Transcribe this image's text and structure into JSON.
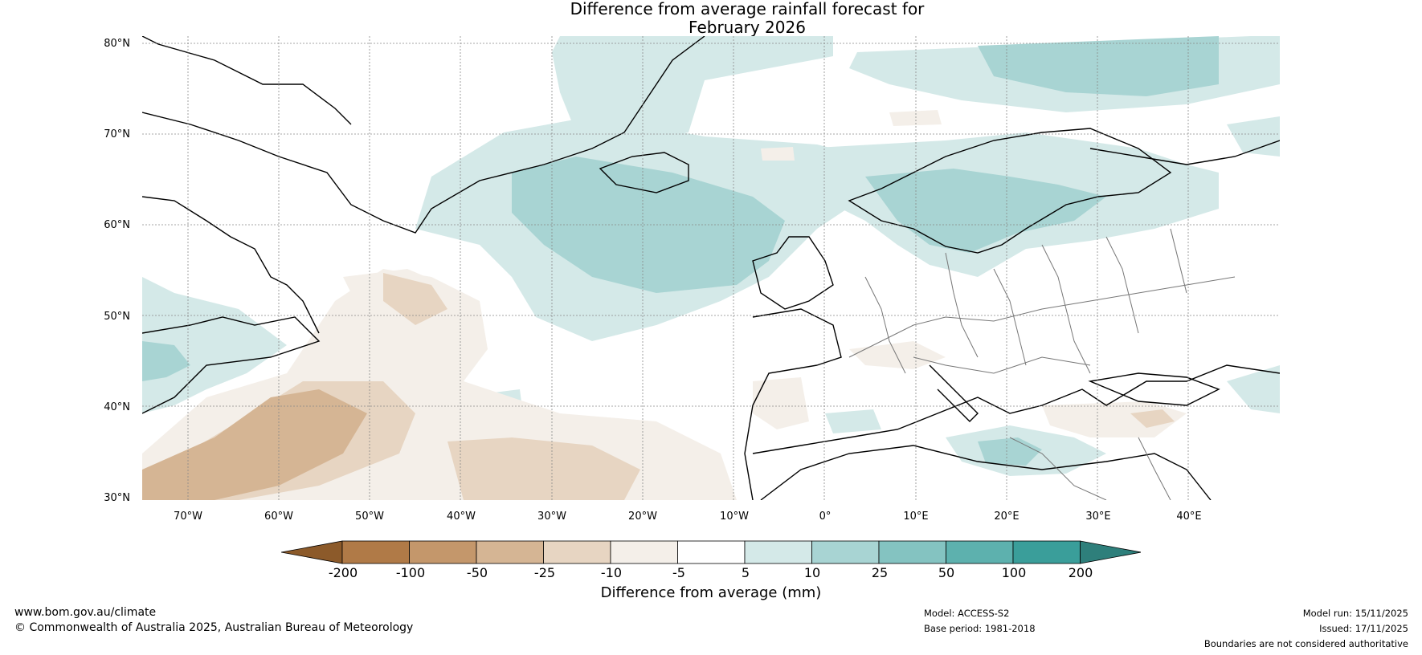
{
  "title_line1": "Difference from average rainfall forecast for",
  "title_line2": "February 2026",
  "map": {
    "region": "North Atlantic and Europe",
    "lon_range": [
      -75,
      50
    ],
    "lat_range": [
      30,
      81
    ],
    "lat_labels": [
      "80°N",
      "70°N",
      "60°N",
      "50°N",
      "40°N",
      "30°N"
    ],
    "lon_labels": [
      "70°W",
      "60°W",
      "50°W",
      "40°W",
      "30°W",
      "20°W",
      "10°W",
      "0°",
      "10°E",
      "20°E",
      "30°E",
      "40°E"
    ],
    "graticule": "dotted"
  },
  "colorbar": {
    "title": "Difference from average (mm)",
    "tick_labels": [
      "-200",
      "-100",
      "-50",
      "-25",
      "-10",
      "-5",
      "5",
      "10",
      "25",
      "50",
      "100",
      "200"
    ],
    "colors": [
      "#8c5a2a",
      "#b07a47",
      "#c4976b",
      "#d5b594",
      "#e7d5c2",
      "#f4efe9",
      "#ffffff",
      "#d4e9e8",
      "#a8d4d3",
      "#84c3c1",
      "#5db1ae",
      "#3a9e9a",
      "#2e7f7b"
    ],
    "extend": "both"
  },
  "footer": {
    "website": "www.bom.gov.au/climate",
    "copyright": "© Commonwealth of Australia 2025, Australian Bureau of Meteorology",
    "model": "Model: ACCESS-S2",
    "base_period": "Base period: 1981-2018",
    "model_run": "Model run: 15/11/2025",
    "issued": "Issued: 17/11/2025",
    "disclaimer": "Boundaries are not considered authoritative"
  }
}
